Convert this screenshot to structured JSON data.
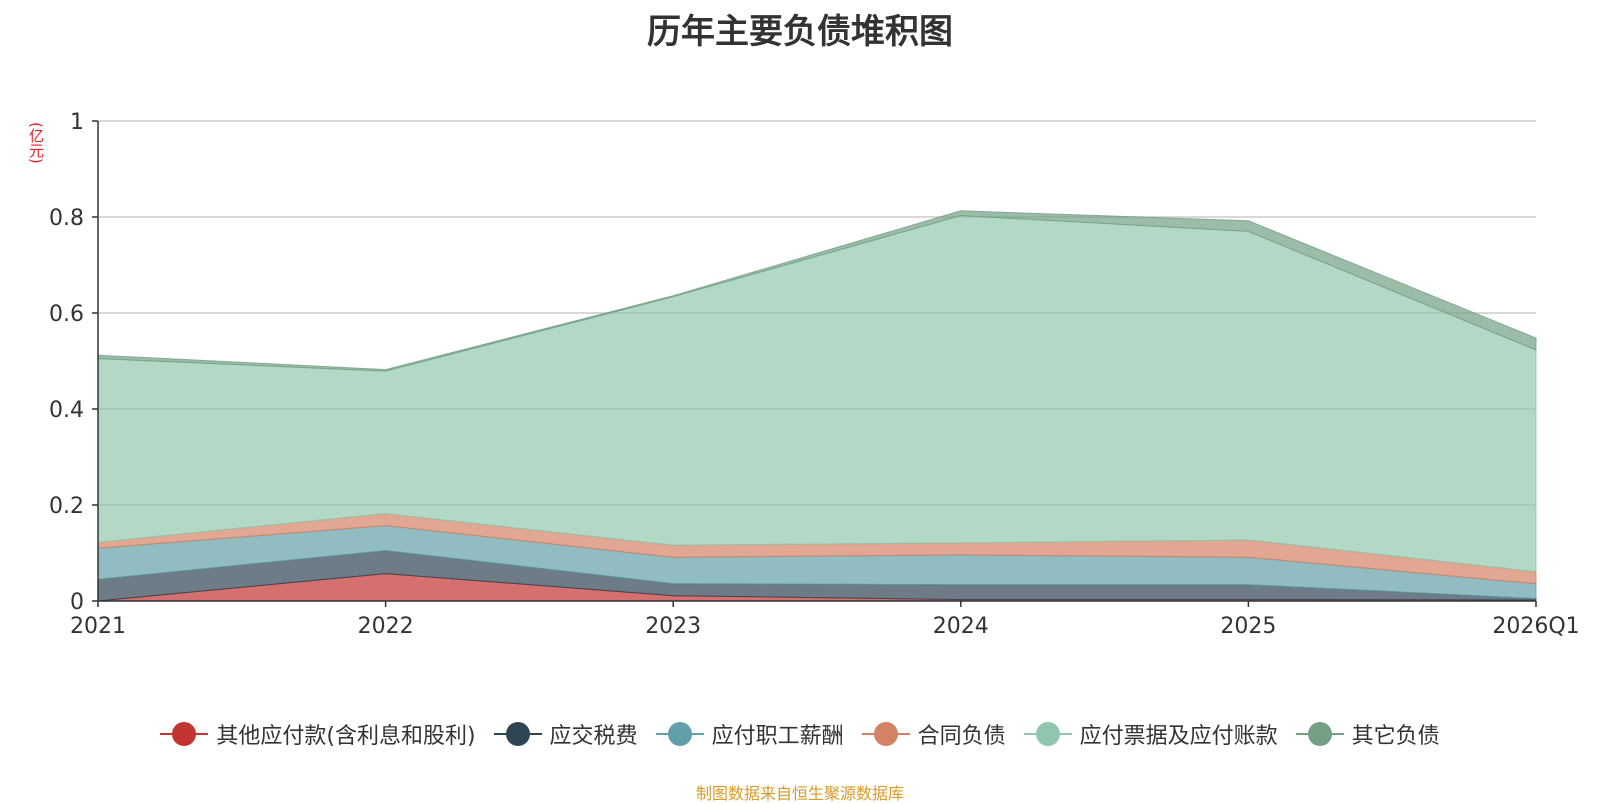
{
  "chart_data": {
    "type": "area",
    "stacked": true,
    "title": "历年主要负债堆积图",
    "unit_label": "(亿元)",
    "categories": [
      "2021",
      "2022",
      "2023",
      "2024",
      "2025",
      "2026Q1"
    ],
    "ylim": [
      0,
      1
    ],
    "yticks": [
      "0",
      "0.2",
      "0.4",
      "0.6",
      "0.8",
      "1"
    ],
    "ytick_values": [
      0,
      0.2,
      0.4,
      0.6,
      0.8,
      1
    ],
    "grid": true,
    "legend_position": "bottom",
    "series": [
      {
        "name": "其他应付款(含利息和股利)",
        "color": "#c23531",
        "values": [
          0.0,
          0.057,
          0.011,
          0.003,
          0.003,
          0.002
        ]
      },
      {
        "name": "应交税费",
        "color": "#2f4554",
        "values": [
          0.045,
          0.048,
          0.025,
          0.031,
          0.031,
          0.003
        ]
      },
      {
        "name": "应付职工薪酬",
        "color": "#61a0a8",
        "values": [
          0.065,
          0.052,
          0.055,
          0.062,
          0.057,
          0.031
        ]
      },
      {
        "name": "合同负债",
        "color": "#d48265",
        "values": [
          0.012,
          0.025,
          0.025,
          0.025,
          0.036,
          0.025
        ]
      },
      {
        "name": "应付票据及应付账款",
        "color": "#91c7ae",
        "values": [
          0.383,
          0.297,
          0.518,
          0.682,
          0.643,
          0.462
        ]
      },
      {
        "name": "其它负债",
        "color": "#749f83",
        "values": [
          0.007,
          0.003,
          0.002,
          0.01,
          0.022,
          0.025
        ]
      }
    ]
  },
  "footer": {
    "source": "制图数据来自恒生聚源数据库"
  }
}
